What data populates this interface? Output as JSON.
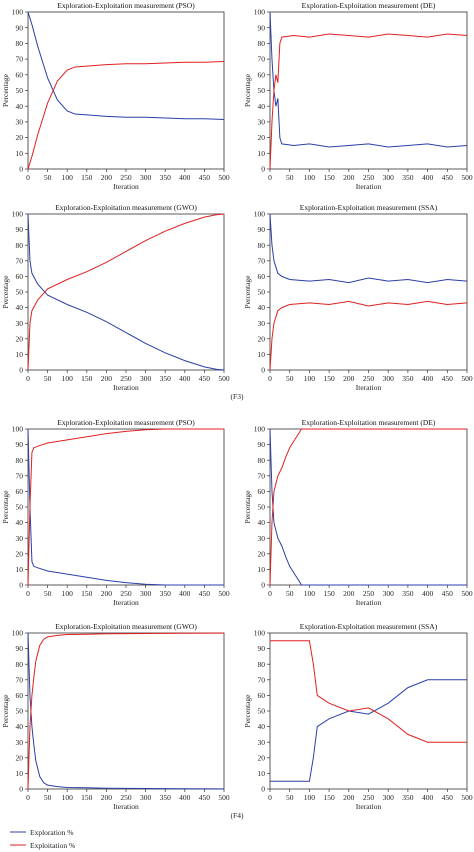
{
  "colors": {
    "exploration": "#2b3fa8",
    "exploitation": "#e02020",
    "axis": "#333333"
  },
  "panel_tags": [
    "(F3)",
    "(F4)"
  ],
  "legend": [
    {
      "label": "Exploration %",
      "color": "#2b3fa8"
    },
    {
      "label": "Exploitation %",
      "color": "#e02020"
    }
  ],
  "chart_data": [
    {
      "type": "line",
      "title": "Exploration-Exploitation measurement (PSO)",
      "xlabel": "Iteration",
      "ylabel": "Percentage",
      "xlim": [
        0,
        500
      ],
      "ylim": [
        0,
        100
      ],
      "xticks": [
        0,
        50,
        100,
        150,
        200,
        250,
        300,
        350,
        400,
        450,
        500
      ],
      "yticks": [
        0,
        10,
        20,
        30,
        40,
        50,
        60,
        70,
        80,
        90,
        100
      ],
      "series": [
        {
          "name": "Exploration %",
          "x": [
            0,
            10,
            25,
            50,
            75,
            100,
            120,
            150,
            200,
            250,
            300,
            350,
            400,
            450,
            500
          ],
          "y": [
            100,
            92,
            78,
            58,
            44,
            37,
            35,
            34.5,
            33.5,
            33,
            33,
            32.5,
            32,
            32,
            31.5
          ]
        },
        {
          "name": "Exploitation %",
          "x": [
            0,
            10,
            25,
            50,
            75,
            100,
            120,
            150,
            200,
            250,
            300,
            350,
            400,
            450,
            500
          ],
          "y": [
            0,
            8,
            22,
            42,
            56,
            63,
            65,
            65.5,
            66.5,
            67,
            67,
            67.5,
            68,
            68,
            68.5
          ]
        }
      ]
    },
    {
      "type": "line",
      "title": "Exploration-Exploitation measurement (DE)",
      "xlabel": "Iteration",
      "ylabel": "Percentage",
      "xlim": [
        0,
        500
      ],
      "ylim": [
        0,
        100
      ],
      "xticks": [
        0,
        50,
        100,
        150,
        200,
        250,
        300,
        350,
        400,
        450,
        500
      ],
      "yticks": [
        0,
        10,
        20,
        30,
        40,
        50,
        60,
        70,
        80,
        90,
        100
      ],
      "series": [
        {
          "name": "Exploration %",
          "x": [
            0,
            5,
            10,
            15,
            20,
            25,
            30,
            60,
            100,
            150,
            200,
            250,
            300,
            350,
            400,
            450,
            500
          ],
          "y": [
            100,
            70,
            50,
            40,
            45,
            20,
            16,
            15,
            16,
            14,
            15,
            16,
            14,
            15,
            16,
            14,
            15
          ]
        },
        {
          "name": "Exploitation %",
          "x": [
            0,
            5,
            10,
            15,
            20,
            25,
            30,
            60,
            100,
            150,
            200,
            250,
            300,
            350,
            400,
            450,
            500
          ],
          "y": [
            0,
            30,
            50,
            60,
            55,
            80,
            84,
            85,
            84,
            86,
            85,
            84,
            86,
            85,
            84,
            86,
            85
          ]
        }
      ]
    },
    {
      "type": "line",
      "title": "Exploration-Exploitation measurement (GWO)",
      "xlabel": "Iteration",
      "ylabel": "Percentage",
      "xlim": [
        0,
        500
      ],
      "ylim": [
        0,
        100
      ],
      "xticks": [
        0,
        50,
        100,
        150,
        200,
        250,
        300,
        350,
        400,
        450,
        500
      ],
      "yticks": [
        0,
        10,
        20,
        30,
        40,
        50,
        60,
        70,
        80,
        90,
        100
      ],
      "series": [
        {
          "name": "Exploration %",
          "x": [
            0,
            5,
            10,
            25,
            50,
            100,
            150,
            200,
            250,
            300,
            350,
            400,
            450,
            480,
            500
          ],
          "y": [
            100,
            70,
            62,
            55,
            48,
            42,
            37,
            31,
            24,
            17,
            11,
            6,
            2,
            0.5,
            0
          ]
        },
        {
          "name": "Exploitation %",
          "x": [
            0,
            5,
            10,
            25,
            50,
            100,
            150,
            200,
            250,
            300,
            350,
            400,
            450,
            480,
            500
          ],
          "y": [
            0,
            30,
            38,
            45,
            52,
            58,
            63,
            69,
            76,
            83,
            89,
            94,
            98,
            99.5,
            100
          ]
        }
      ]
    },
    {
      "type": "line",
      "title": "Exploration-Exploitation measurement (SSA)",
      "xlabel": "Iteration",
      "ylabel": "Percentage",
      "xlim": [
        0,
        500
      ],
      "ylim": [
        0,
        100
      ],
      "xticks": [
        0,
        50,
        100,
        150,
        200,
        250,
        300,
        350,
        400,
        450,
        500
      ],
      "yticks": [
        0,
        10,
        20,
        30,
        40,
        50,
        60,
        70,
        80,
        90,
        100
      ],
      "series": [
        {
          "name": "Exploration %",
          "x": [
            0,
            5,
            10,
            20,
            30,
            50,
            100,
            150,
            200,
            250,
            300,
            350,
            400,
            450,
            500
          ],
          "y": [
            100,
            80,
            70,
            62,
            60,
            58,
            57,
            58,
            56,
            59,
            57,
            58,
            56,
            58,
            57
          ]
        },
        {
          "name": "Exploitation %",
          "x": [
            0,
            5,
            10,
            20,
            30,
            50,
            100,
            150,
            200,
            250,
            300,
            350,
            400,
            450,
            500
          ],
          "y": [
            0,
            20,
            30,
            38,
            40,
            42,
            43,
            42,
            44,
            41,
            43,
            42,
            44,
            42,
            43
          ]
        }
      ]
    },
    {
      "type": "line",
      "title": "Exploration-Exploitation measurement (PSO)",
      "xlabel": "Iteration",
      "ylabel": "Percentage",
      "xlim": [
        0,
        500
      ],
      "ylim": [
        0,
        100
      ],
      "xticks": [
        0,
        50,
        100,
        150,
        200,
        250,
        300,
        350,
        400,
        450,
        500
      ],
      "yticks": [
        0,
        10,
        20,
        30,
        40,
        50,
        60,
        70,
        80,
        90,
        100
      ],
      "series": [
        {
          "name": "Exploration %",
          "x": [
            0,
            5,
            10,
            15,
            25,
            50,
            100,
            150,
            200,
            250,
            300,
            350,
            400,
            450,
            500
          ],
          "y": [
            100,
            50,
            15,
            12,
            11,
            9,
            7,
            5,
            3,
            1.5,
            0.5,
            0,
            0,
            0,
            0
          ]
        },
        {
          "name": "Exploitation %",
          "x": [
            0,
            5,
            10,
            15,
            25,
            50,
            100,
            150,
            200,
            250,
            300,
            350,
            400,
            450,
            500
          ],
          "y": [
            0,
            50,
            85,
            88,
            89,
            91,
            93,
            95,
            97,
            98.5,
            99.5,
            100,
            100,
            100,
            100
          ]
        }
      ]
    },
    {
      "type": "line",
      "title": "Exploration-Exploitation measurement (DE)",
      "xlabel": "Iteration",
      "ylabel": "Percentage",
      "xlim": [
        0,
        500
      ],
      "ylim": [
        0,
        100
      ],
      "xticks": [
        0,
        50,
        100,
        150,
        200,
        250,
        300,
        350,
        400,
        450,
        500
      ],
      "yticks": [
        0,
        10,
        20,
        30,
        40,
        50,
        60,
        70,
        80,
        90,
        100
      ],
      "series": [
        {
          "name": "Exploration %",
          "x": [
            0,
            5,
            10,
            20,
            30,
            40,
            50,
            60,
            70,
            80,
            100,
            200,
            300,
            400,
            500
          ],
          "y": [
            100,
            60,
            40,
            30,
            25,
            18,
            12,
            8,
            4,
            0,
            0,
            0,
            0,
            0,
            0
          ]
        },
        {
          "name": "Exploitation %",
          "x": [
            0,
            5,
            10,
            20,
            30,
            40,
            50,
            60,
            70,
            80,
            100,
            200,
            300,
            400,
            500
          ],
          "y": [
            0,
            40,
            60,
            70,
            75,
            82,
            88,
            92,
            96,
            100,
            100,
            100,
            100,
            100,
            100
          ]
        }
      ]
    },
    {
      "type": "line",
      "title": "Exploration-Exploitation measurement (GWO)",
      "xlabel": "Iteration",
      "ylabel": "Percentage",
      "xlim": [
        0,
        500
      ],
      "ylim": [
        0,
        100
      ],
      "xticks": [
        0,
        50,
        100,
        150,
        200,
        250,
        300,
        350,
        400,
        450,
        500
      ],
      "yticks": [
        0,
        10,
        20,
        30,
        40,
        50,
        60,
        70,
        80,
        90,
        100
      ],
      "series": [
        {
          "name": "Exploration %",
          "x": [
            0,
            5,
            10,
            15,
            20,
            30,
            40,
            50,
            75,
            100,
            150,
            200,
            300,
            400,
            500
          ],
          "y": [
            100,
            60,
            40,
            28,
            18,
            8,
            4,
            2.5,
            1.5,
            1,
            0.8,
            0.5,
            0.3,
            0.2,
            0.1
          ]
        },
        {
          "name": "Exploitation %",
          "x": [
            0,
            5,
            10,
            15,
            20,
            30,
            40,
            50,
            75,
            100,
            150,
            200,
            300,
            400,
            500
          ],
          "y": [
            0,
            40,
            60,
            72,
            82,
            92,
            96,
            97.5,
            98.5,
            99,
            99.2,
            99.5,
            99.7,
            99.8,
            99.9
          ]
        }
      ]
    },
    {
      "type": "line",
      "title": "Exploration-Exploitation measurement (SSA)",
      "xlabel": "Iteration",
      "ylabel": "Percentage",
      "xlim": [
        0,
        500
      ],
      "ylim": [
        0,
        100
      ],
      "xticks": [
        0,
        50,
        100,
        150,
        200,
        250,
        300,
        350,
        400,
        450,
        500
      ],
      "yticks": [
        0,
        10,
        20,
        30,
        40,
        50,
        60,
        70,
        80,
        90,
        100
      ],
      "series": [
        {
          "name": "Exploration %",
          "x": [
            0,
            50,
            100,
            110,
            120,
            150,
            200,
            250,
            300,
            350,
            400,
            450,
            500
          ],
          "y": [
            5,
            5,
            5,
            20,
            40,
            45,
            50,
            48,
            55,
            65,
            70,
            70,
            70
          ]
        },
        {
          "name": "Exploitation %",
          "x": [
            0,
            50,
            100,
            110,
            120,
            150,
            200,
            250,
            300,
            350,
            400,
            450,
            500
          ],
          "y": [
            95,
            95,
            95,
            80,
            60,
            55,
            50,
            52,
            45,
            35,
            30,
            30,
            30
          ]
        }
      ]
    }
  ]
}
